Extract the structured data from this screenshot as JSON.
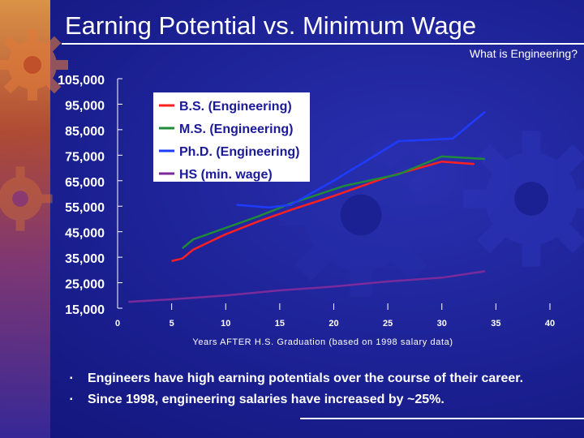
{
  "slide": {
    "title": "Earning Potential vs. Minimum Wage",
    "subtitle": "What is Engineering?",
    "bullets": [
      "Engineers have high earning potentials over the course of their  career.",
      "Since 1998, engineering salaries have increased by ~25%."
    ],
    "bullet_marker": "▪",
    "colors": {
      "background": "#1b2092",
      "text": "#ffffff"
    }
  },
  "chart_data": {
    "type": "line",
    "title": "",
    "xlabel": "Years AFTER H.S. Graduation (based on 1998 salary data)",
    "ylabel": "",
    "xlim": [
      0,
      40
    ],
    "ylim": [
      15000,
      105000
    ],
    "x_ticks": [
      0,
      5,
      10,
      15,
      20,
      25,
      30,
      35,
      40
    ],
    "x_tick_labels": [
      "0",
      "5",
      "10",
      "15",
      "20",
      "25",
      "30",
      "35",
      "40"
    ],
    "y_ticks": [
      15000,
      25000,
      35000,
      45000,
      55000,
      65000,
      75000,
      85000,
      95000,
      105000
    ],
    "y_tick_labels": [
      "15,000",
      "25,000",
      "35,000",
      "45,000",
      "55,000",
      "65,000",
      "75,000",
      "85,000",
      "95,000",
      "105,000"
    ],
    "grid": false,
    "legend_position": "top-left",
    "series": [
      {
        "name": "B.S. (Engineering)",
        "color": "#ff2020",
        "points": [
          [
            5,
            33500
          ],
          [
            6,
            34500
          ],
          [
            7,
            38000
          ],
          [
            10,
            44000
          ],
          [
            13,
            49000
          ],
          [
            16,
            53500
          ],
          [
            20,
            59000
          ],
          [
            25,
            66500
          ],
          [
            30,
            72500
          ],
          [
            33,
            71500
          ]
        ]
      },
      {
        "name": "M.S. (Engineering)",
        "color": "#1f8a3a",
        "points": [
          [
            6,
            38500
          ],
          [
            7,
            42000
          ],
          [
            8,
            43500
          ],
          [
            10,
            46500
          ],
          [
            13,
            51000
          ],
          [
            16,
            56000
          ],
          [
            21,
            63000
          ],
          [
            26,
            67500
          ],
          [
            30,
            74500
          ],
          [
            34,
            73500
          ]
        ]
      },
      {
        "name": "Ph.D. (Engineering)",
        "color": "#1e3cff",
        "points": [
          [
            11,
            55500
          ],
          [
            14,
            54500
          ],
          [
            16,
            55500
          ],
          [
            20,
            65000
          ],
          [
            26,
            80500
          ],
          [
            31,
            81500
          ],
          [
            34,
            92000
          ]
        ]
      },
      {
        "name": "HS (min. wage)",
        "color": "#7a2a9a",
        "points": [
          [
            1,
            17500
          ],
          [
            5,
            18500
          ],
          [
            10,
            20000
          ],
          [
            15,
            22000
          ],
          [
            20,
            23500
          ],
          [
            25,
            25500
          ],
          [
            30,
            27000
          ],
          [
            34,
            29500
          ]
        ]
      }
    ]
  }
}
